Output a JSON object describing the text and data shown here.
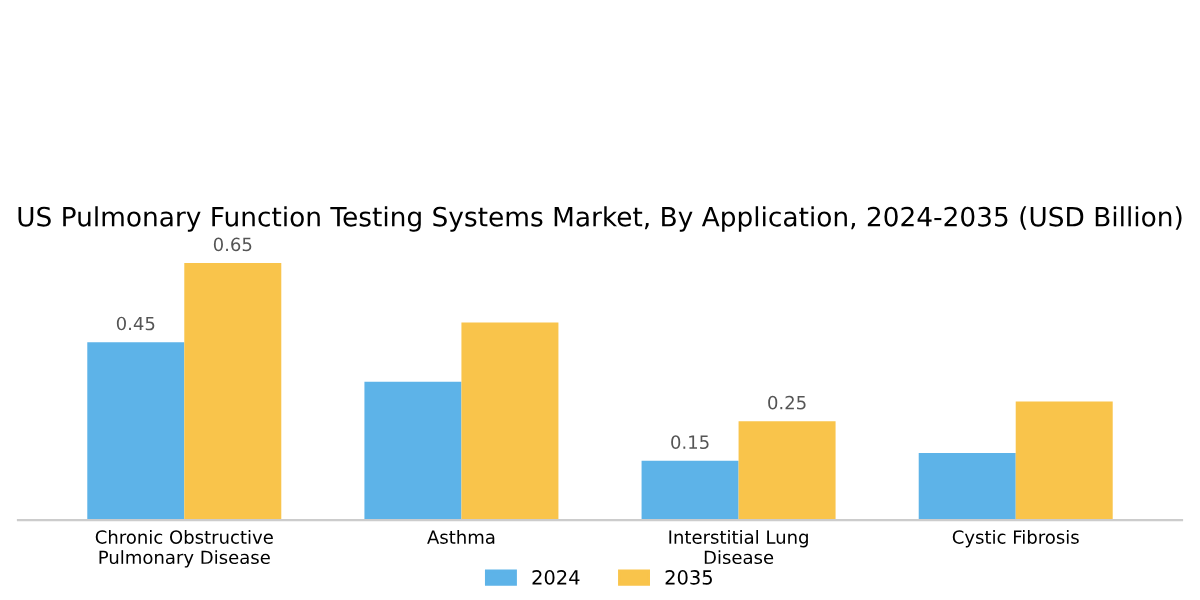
{
  "chart_data": {
    "type": "bar",
    "title": "US Pulmonary Function Testing Systems Market, By Application, 2024-2035 (USD Billion)",
    "categories": [
      "Chronic Obstructive\nPulmonary Disease",
      "Asthma",
      "Interstitial Lung\nDisease",
      "Cystic Fibrosis"
    ],
    "series": [
      {
        "name": "2024",
        "color": "#5db3e8",
        "values": [
          0.45,
          0.35,
          0.15,
          0.17
        ],
        "value_labels": [
          "0.45",
          null,
          "0.15",
          null
        ]
      },
      {
        "name": "2035",
        "color": "#f9c44b",
        "values": [
          0.65,
          0.5,
          0.25,
          0.3
        ],
        "value_labels": [
          "0.65",
          null,
          "0.25",
          null
        ]
      }
    ],
    "legend": "bottom",
    "grid": false
  }
}
